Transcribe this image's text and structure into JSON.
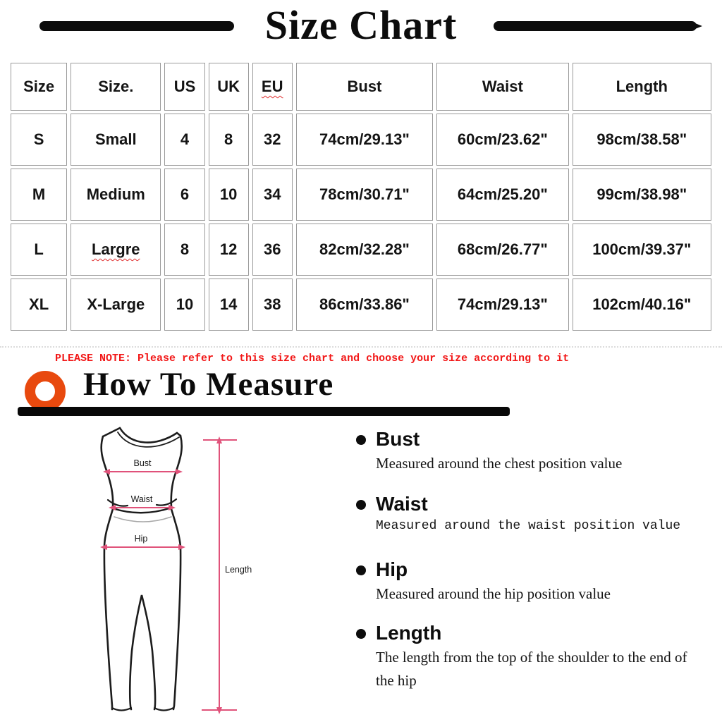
{
  "title": "Size Chart",
  "table": {
    "headers": [
      "Size",
      "Size.",
      "US",
      "UK",
      "EU",
      "Bust",
      "Waist",
      "Length"
    ],
    "squiggle_headers": [
      4
    ],
    "squiggle_cells": [
      [
        2,
        1
      ]
    ],
    "rows": [
      [
        "S",
        "Small",
        "4",
        "8",
        "32",
        "74cm/29.13\"",
        "60cm/23.62\"",
        "98cm/38.58\""
      ],
      [
        "M",
        "Medium",
        "6",
        "10",
        "34",
        "78cm/30.71\"",
        "64cm/25.20\"",
        "99cm/38.98\""
      ],
      [
        "L",
        "Largre",
        "8",
        "12",
        "36",
        "82cm/32.28\"",
        "68cm/26.77\"",
        "100cm/39.37\""
      ],
      [
        "XL",
        "X-Large",
        "10",
        "14",
        "38",
        "86cm/33.86\"",
        "74cm/29.13\"",
        "102cm/40.16\""
      ]
    ]
  },
  "note": "PLEASE NOTE: Please refer to this size chart and choose your size according to it",
  "how_to_measure_title": "How To Measure",
  "figure_labels": {
    "bust": "Bust",
    "waist": "Waist",
    "hip": "Hip",
    "length": "Length"
  },
  "measure_items": [
    {
      "label": "Bust",
      "description": "Measured around the chest position value",
      "style": "serif"
    },
    {
      "label": "Waist",
      "description": "Measured around the waist position value",
      "style": "mono"
    },
    {
      "label": "Hip",
      "description": "Measured around the  hip position value",
      "style": "serif"
    },
    {
      "label": "Length",
      "description": "The length from the top of the shoulder to the end of the hip",
      "style": "serif"
    }
  ],
  "colors": {
    "note_red": "#f21818",
    "ring_orange": "#e8490e",
    "accent_pink": "#e0527a",
    "garment_line": "#1c1c1c",
    "waistband_gray": "#a8a8a8"
  }
}
